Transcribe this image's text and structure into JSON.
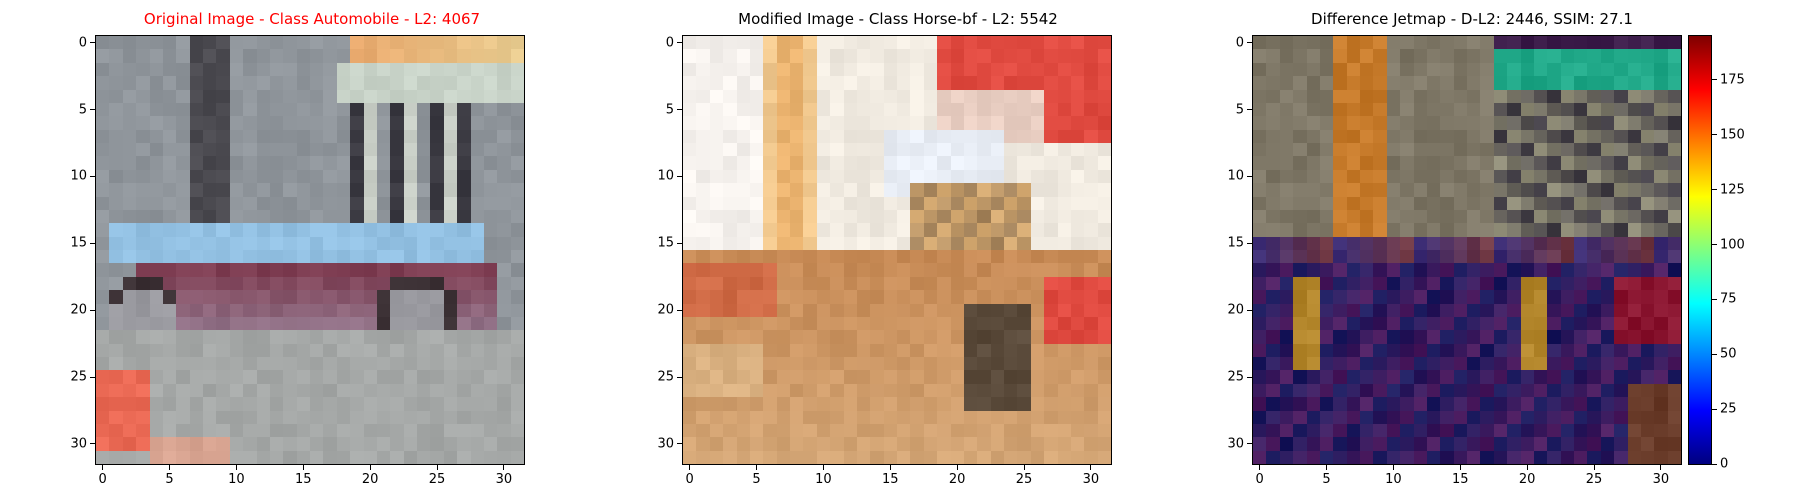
{
  "panels": [
    {
      "id": "original",
      "title": "Original Image - Class Automobile - L2: 4067",
      "title_color": "#ff0000",
      "content": "Pixelated 32x32 photo of a sedan car parked in front of a building",
      "palette": {
        "bg": "#8f959b",
        "car": "#7e3d52",
        "glass": "#92c0e2",
        "tire": "#3a2f33",
        "road": "#a5a8a7",
        "wall": "#c8d3c8",
        "sign": "#ea6954"
      },
      "x_ticks": [
        0,
        5,
        10,
        15,
        20,
        25,
        30
      ],
      "y_ticks": [
        0,
        5,
        10,
        15,
        20,
        25,
        30
      ]
    },
    {
      "id": "modified",
      "title": "Modified Image - Class Horse-bf - L2: 5542",
      "title_color": "#000000",
      "content": "Pixelated 32x32 image with warm beige/brown tones and red patches",
      "palette": {
        "bg": "#f0eae0",
        "brown": "#c78a55",
        "dark": "#5a4a3a",
        "red": "#e04a40",
        "light": "#f6f2ee"
      },
      "x_ticks": [
        0,
        5,
        10,
        15,
        20,
        25,
        30
      ],
      "y_ticks": [
        0,
        5,
        10,
        15,
        20,
        25,
        30
      ]
    },
    {
      "id": "difference",
      "title": "Difference Jetmap - D-L2: 2446, SSIM: 27.1",
      "title_color": "#000000",
      "content": "Pixelated jet-colormap overlay showing pixel differences",
      "palette": {
        "bg": "#7e7766",
        "orange": "#c67a2a",
        "teal": "#20a888",
        "navy": "#1b1a5e",
        "purple": "#5b1c60",
        "maroon": "#8a1530"
      },
      "x_ticks": [
        0,
        5,
        10,
        15,
        20,
        25,
        30
      ],
      "y_ticks": [
        0,
        5,
        10,
        15,
        20,
        25,
        30
      ]
    }
  ],
  "colorbar": {
    "ticks": [
      0,
      25,
      50,
      75,
      100,
      125,
      150,
      175
    ],
    "min": 0,
    "max": 195
  }
}
